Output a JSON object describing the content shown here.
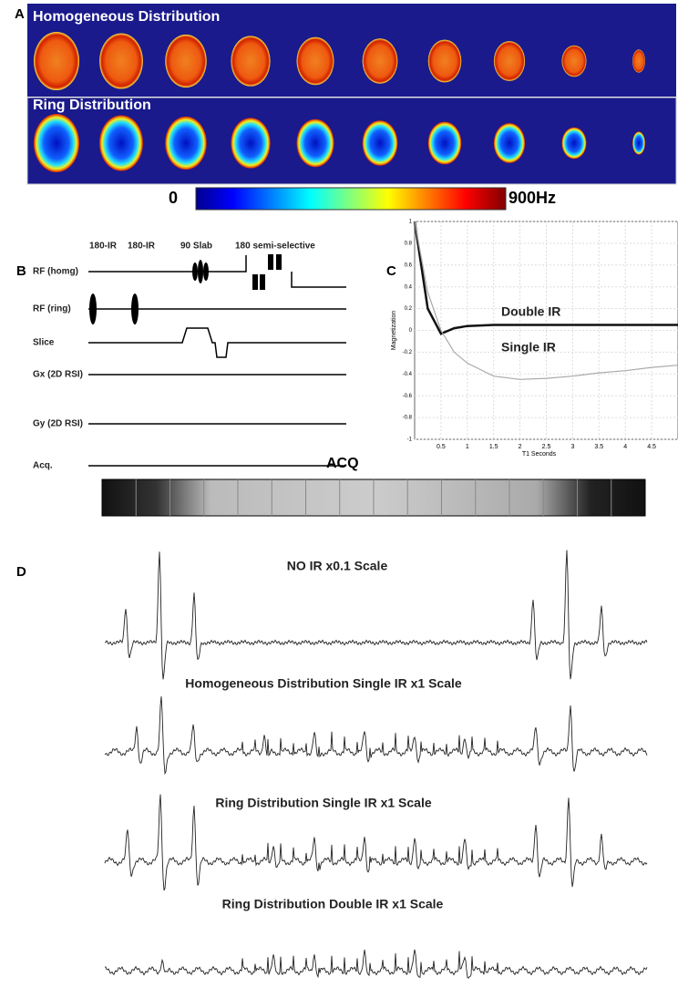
{
  "panel_labels": [
    "A",
    "B",
    "C",
    "D"
  ],
  "panel_a": {
    "rows": [
      "Homogeneous Distribution",
      "Ring Distribution"
    ],
    "colorbar": {
      "min_label": "0",
      "max_label": "900Hz"
    }
  },
  "panel_b": {
    "pulse_labels": [
      "180-IR",
      "180-IR",
      "90 Slab",
      "180 semi-selective"
    ],
    "rows": [
      "RF (homg)",
      "RF (ring)",
      "Slice",
      "Gx (2D RSI)",
      "Gy (2D RSI)",
      "Acq."
    ],
    "acq_label": "ACQ"
  },
  "chart_data": {
    "type": "line",
    "x_label": "T1 Seconds",
    "y_label": "Magnetization",
    "xlim": [
      0,
      5
    ],
    "ylim": [
      -1,
      1
    ],
    "xticks": [
      0.5,
      1,
      1.5,
      2,
      2.5,
      3,
      3.5,
      4,
      4.5
    ],
    "yticks": [
      -1,
      -0.8,
      -0.6,
      -0.4,
      -0.2,
      0,
      0.2,
      0.4,
      0.6,
      0.8,
      1
    ],
    "grid": true,
    "x": [
      0,
      0.25,
      0.5,
      0.75,
      1,
      1.5,
      2,
      2.5,
      3,
      3.5,
      4,
      4.5,
      5
    ],
    "series": [
      {
        "name": "Double IR",
        "color": "#111111",
        "values": [
          1,
          0.2,
          -0.03,
          0.02,
          0.04,
          0.05,
          0.05,
          0.05,
          0.05,
          0.05,
          0.05,
          0.05,
          0.05
        ]
      },
      {
        "name": "Single IR",
        "color": "#aaaaaa",
        "values": [
          1,
          0.35,
          0,
          -0.2,
          -0.3,
          -0.42,
          -0.45,
          -0.44,
          -0.42,
          -0.39,
          -0.37,
          -0.34,
          -0.32
        ]
      }
    ]
  },
  "panel_d": {
    "traces": [
      "NO IR  x0.1 Scale",
      "Homogeneous Distribution Single IR x1 Scale",
      "Ring Distribution Single IR x1 Scale",
      "Ring Distribution Double IR x1 Scale"
    ]
  }
}
